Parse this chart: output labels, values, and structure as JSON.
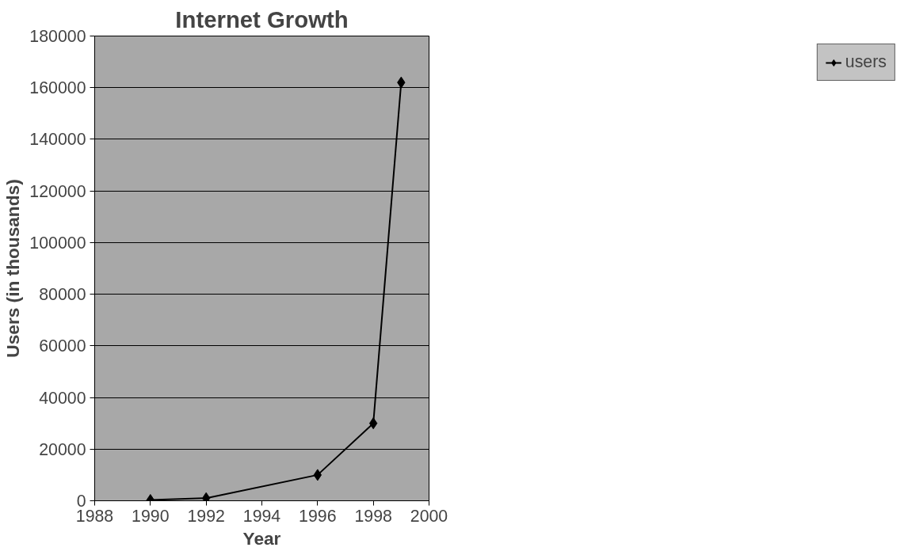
{
  "chart_data": {
    "type": "line",
    "title": "Internet Growth",
    "xlabel": "Year",
    "ylabel": "Users (in thousands)",
    "x": [
      1990,
      1992,
      1996,
      1998,
      1999
    ],
    "series": [
      {
        "name": "users",
        "color": "#000000",
        "values": [
          300,
          1000,
          10000,
          30000,
          162000
        ]
      }
    ],
    "xlim": [
      1988,
      2000
    ],
    "xticks": [
      1988,
      1990,
      1992,
      1994,
      1996,
      1998,
      2000
    ],
    "ylim": [
      0,
      180000
    ],
    "yticks": [
      0,
      20000,
      40000,
      60000,
      80000,
      100000,
      120000,
      140000,
      160000,
      180000
    ],
    "grid": "y",
    "legend": "right",
    "marker": "diamond",
    "line_style": "solid"
  }
}
